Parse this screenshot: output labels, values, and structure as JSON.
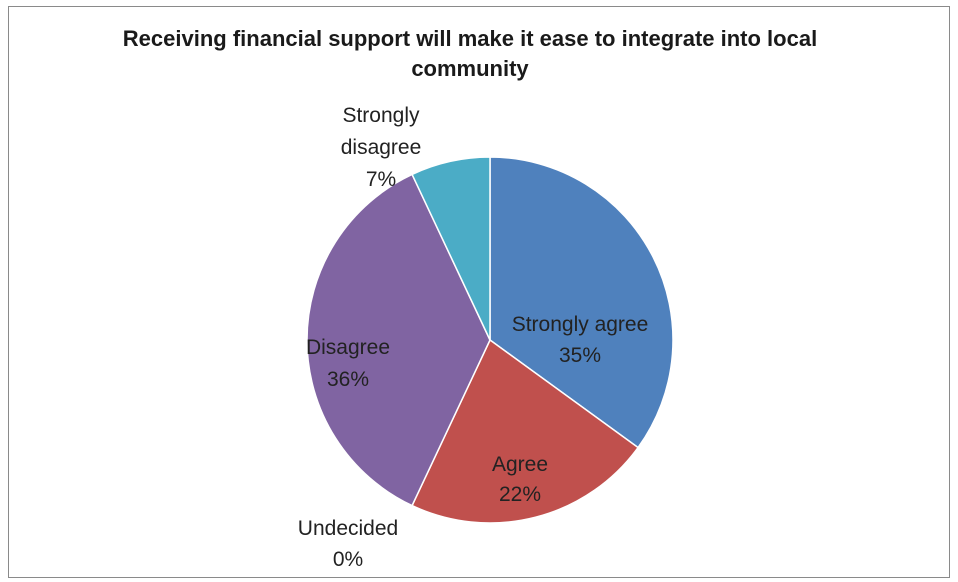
{
  "chart_data": {
    "type": "pie",
    "title_lines": [
      "Receiving financial support will make it ease to integrate into local",
      "community"
    ],
    "slices": [
      {
        "label": "Strongly agree",
        "value": 35,
        "pct_label": "35%",
        "color": "#4f81bd"
      },
      {
        "label": "Agree",
        "value": 22,
        "pct_label": "22%",
        "color": "#c0504d"
      },
      {
        "label": "Undecided",
        "value": 0,
        "pct_label": "0%",
        "color": "#9bbb59"
      },
      {
        "label": "Disagree",
        "value": 36,
        "pct_label": "36%",
        "color": "#8064a2"
      },
      {
        "label": "Strongly disagree",
        "value": 7,
        "pct_label": "7%",
        "color": "#4bacc6"
      }
    ],
    "legend": "none"
  }
}
